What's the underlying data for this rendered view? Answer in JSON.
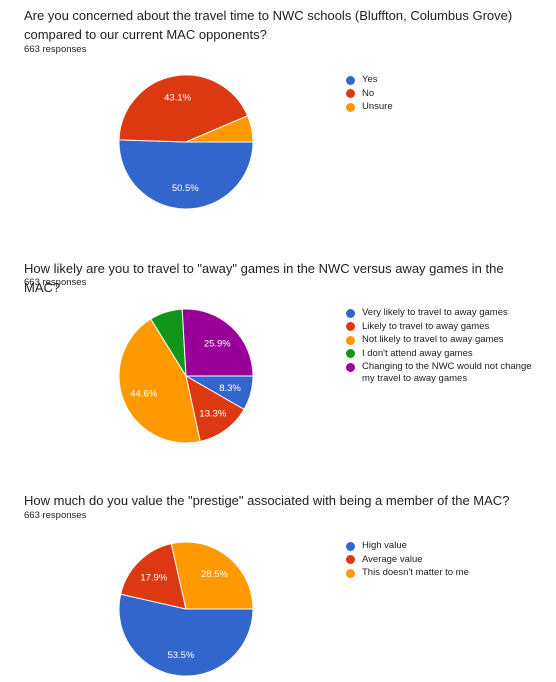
{
  "chart_data": [
    {
      "type": "pie",
      "title": "Are you concerned about the travel time to NWC schools (Bluffton, Columbus Grove) compared to our current MAC opponents?",
      "responses": "663 responses",
      "legend_position": "right",
      "series": [
        {
          "name": "Yes",
          "value": 50.5,
          "label": "50.5%",
          "color": "#3366cc"
        },
        {
          "name": "No",
          "value": 43.1,
          "label": "43.1%",
          "color": "#dc3912"
        },
        {
          "name": "Unsure",
          "value": 6.4,
          "label": "",
          "color": "#ff9900"
        }
      ]
    },
    {
      "type": "pie",
      "title": "How likely are you to travel to \"away\" games in the NWC versus away games in the MAC?",
      "responses": "663 responses",
      "legend_position": "right",
      "series": [
        {
          "name": "Very likely to travel to away games",
          "value": 8.3,
          "label": "8.3%",
          "color": "#3366cc"
        },
        {
          "name": "Likely to travel to away games",
          "value": 13.3,
          "label": "13.3%",
          "color": "#dc3912"
        },
        {
          "name": "Not likely to travel to away games",
          "value": 44.6,
          "label": "44.6%",
          "color": "#ff9900"
        },
        {
          "name": "I don't attend away games",
          "value": 7.9,
          "label": "",
          "color": "#109618"
        },
        {
          "name": "Changing to the NWC would not change my travel to away games",
          "value": 25.9,
          "label": "25.9%",
          "color": "#990099"
        }
      ]
    },
    {
      "type": "pie",
      "title": "How much do you value the \"prestige\" associated with being a member of the MAC?",
      "responses": "663 responses",
      "legend_position": "right",
      "series": [
        {
          "name": "High value",
          "value": 53.5,
          "label": "53.5%",
          "color": "#3366cc"
        },
        {
          "name": "Average value",
          "value": 17.9,
          "label": "17.9%",
          "color": "#dc3912"
        },
        {
          "name": "This doesn't matter to me",
          "value": 28.5,
          "label": "28.5%",
          "color": "#ff9900"
        }
      ]
    }
  ]
}
